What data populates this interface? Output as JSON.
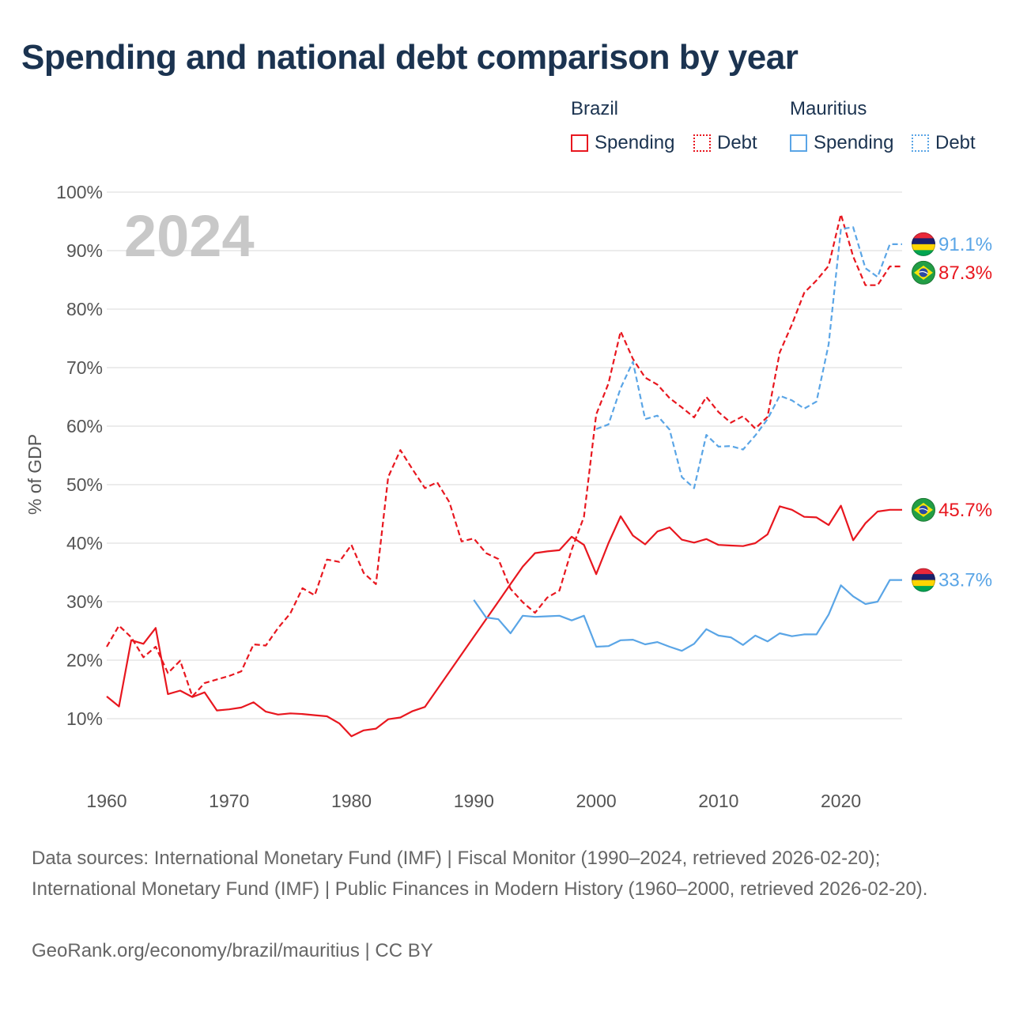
{
  "title": "Spending and national debt comparison by year",
  "year_badge": "2024",
  "legend": {
    "groups": [
      {
        "country": "Brazil",
        "color": "#e8171f",
        "items": [
          {
            "label": "Spending",
            "style": "solid"
          },
          {
            "label": "Debt",
            "style": "dotted"
          }
        ]
      },
      {
        "country": "Mauritius",
        "color": "#5aa5e6",
        "items": [
          {
            "label": "Spending",
            "style": "solid"
          },
          {
            "label": "Debt",
            "style": "dotted"
          }
        ]
      }
    ]
  },
  "footer": {
    "sources": "Data sources: International Monetary Fund (IMF) | Fiscal Monitor (1990–2024, retrieved 2026-02-20); International Monetary Fund (IMF) | Public Finances in Modern History (1960–2000, retrieved 2026-02-20).",
    "credit": "GeoRank.org/economy/brazil/mauritius | CC BY"
  },
  "chart_data": {
    "type": "line",
    "title": "Spending and national debt comparison by year",
    "xlabel": "",
    "ylabel": "% of GDP",
    "xlim": [
      1960,
      2025
    ],
    "ylim": [
      0,
      100
    ],
    "x_ticks": [
      1960,
      1970,
      1980,
      1990,
      2000,
      2010,
      2020
    ],
    "y_ticks": [
      10,
      20,
      30,
      40,
      50,
      60,
      70,
      80,
      90,
      100
    ],
    "y_tick_labels": [
      "10%",
      "20%",
      "30%",
      "40%",
      "50%",
      "60%",
      "70%",
      "80%",
      "90%",
      "100%"
    ],
    "grid": true,
    "series": [
      {
        "name": "Brazil Spending",
        "country": "Brazil",
        "flag": "brazil",
        "color": "#e8171f",
        "dash": "solid",
        "end_label": "45.7%",
        "points": [
          [
            1960,
            13.8
          ],
          [
            1961,
            12.1
          ],
          [
            1962,
            23.4
          ],
          [
            1963,
            22.8
          ],
          [
            1964,
            25.5
          ],
          [
            1965,
            14.2
          ],
          [
            1966,
            14.8
          ],
          [
            1967,
            13.7
          ],
          [
            1968,
            14.5
          ],
          [
            1969,
            11.4
          ],
          [
            1970,
            11.6
          ],
          [
            1971,
            11.9
          ],
          [
            1972,
            12.8
          ],
          [
            1973,
            11.2
          ],
          [
            1974,
            10.7
          ],
          [
            1975,
            10.9
          ],
          [
            1976,
            10.8
          ],
          [
            1977,
            10.6
          ],
          [
            1978,
            10.4
          ],
          [
            1979,
            9.2
          ],
          [
            1980,
            7.0
          ],
          [
            1981,
            8.0
          ],
          [
            1982,
            8.3
          ],
          [
            1983,
            9.9
          ],
          [
            1984,
            10.2
          ],
          [
            1985,
            11.3
          ],
          [
            1986,
            12.0
          ],
          [
            1987,
            15.0
          ],
          [
            1988,
            18.0
          ],
          [
            1989,
            21.0
          ],
          [
            1990,
            24.0
          ],
          [
            1991,
            27.0
          ],
          [
            1992,
            30.0
          ],
          [
            1993,
            33.0
          ],
          [
            1994,
            36.0
          ],
          [
            1995,
            38.3
          ],
          [
            1996,
            38.6
          ],
          [
            1997,
            38.8
          ],
          [
            1998,
            41.1
          ],
          [
            1999,
            39.7
          ],
          [
            2000,
            34.7
          ],
          [
            2001,
            40.0
          ],
          [
            2002,
            44.6
          ],
          [
            2003,
            41.3
          ],
          [
            2004,
            39.8
          ],
          [
            2005,
            42.0
          ],
          [
            2006,
            42.7
          ],
          [
            2007,
            40.6
          ],
          [
            2008,
            40.1
          ],
          [
            2009,
            40.7
          ],
          [
            2010,
            39.7
          ],
          [
            2011,
            39.6
          ],
          [
            2012,
            39.5
          ],
          [
            2013,
            40.0
          ],
          [
            2014,
            41.5
          ],
          [
            2015,
            46.3
          ],
          [
            2016,
            45.7
          ],
          [
            2017,
            44.5
          ],
          [
            2018,
            44.4
          ],
          [
            2019,
            43.1
          ],
          [
            2020,
            46.4
          ],
          [
            2021,
            40.5
          ],
          [
            2022,
            43.4
          ],
          [
            2023,
            45.4
          ],
          [
            2024,
            45.7
          ],
          [
            2025,
            45.7
          ]
        ]
      },
      {
        "name": "Brazil Debt",
        "country": "Brazil",
        "flag": "brazil",
        "color": "#e8171f",
        "dash": "dashed",
        "end_label": "87.3%",
        "points": [
          [
            1960,
            22.3
          ],
          [
            1961,
            25.9
          ],
          [
            1962,
            23.9
          ],
          [
            1963,
            20.5
          ],
          [
            1964,
            22.3
          ],
          [
            1965,
            17.8
          ],
          [
            1966,
            19.9
          ],
          [
            1967,
            13.8
          ],
          [
            1968,
            16.1
          ],
          [
            1969,
            16.7
          ],
          [
            1970,
            17.3
          ],
          [
            1971,
            18.1
          ],
          [
            1972,
            22.7
          ],
          [
            1973,
            22.5
          ],
          [
            1974,
            25.5
          ],
          [
            1975,
            28.0
          ],
          [
            1976,
            32.3
          ],
          [
            1977,
            31.1
          ],
          [
            1978,
            37.2
          ],
          [
            1979,
            36.8
          ],
          [
            1980,
            39.7
          ],
          [
            1981,
            34.9
          ],
          [
            1982,
            33.0
          ],
          [
            1983,
            51.3
          ],
          [
            1984,
            55.9
          ],
          [
            1985,
            52.6
          ],
          [
            1986,
            49.4
          ],
          [
            1987,
            50.4
          ],
          [
            1988,
            47.0
          ],
          [
            1989,
            40.3
          ],
          [
            1990,
            40.8
          ],
          [
            1991,
            38.3
          ],
          [
            1992,
            37.3
          ],
          [
            1993,
            32.2
          ],
          [
            1994,
            29.9
          ],
          [
            1995,
            28.1
          ],
          [
            1996,
            30.7
          ],
          [
            1997,
            31.9
          ],
          [
            1998,
            38.9
          ],
          [
            1999,
            44.5
          ],
          [
            2000,
            62.0
          ],
          [
            2001,
            67.3
          ],
          [
            2002,
            76.2
          ],
          [
            2003,
            71.5
          ],
          [
            2004,
            68.3
          ],
          [
            2005,
            67.1
          ],
          [
            2006,
            64.8
          ],
          [
            2007,
            63.2
          ],
          [
            2008,
            61.5
          ],
          [
            2009,
            65.0
          ],
          [
            2010,
            62.4
          ],
          [
            2011,
            60.6
          ],
          [
            2012,
            61.7
          ],
          [
            2013,
            59.6
          ],
          [
            2014,
            61.6
          ],
          [
            2015,
            72.6
          ],
          [
            2016,
            77.4
          ],
          [
            2017,
            82.8
          ],
          [
            2018,
            84.9
          ],
          [
            2019,
            87.4
          ],
          [
            2020,
            96.2
          ],
          [
            2021,
            89.0
          ],
          [
            2022,
            84.1
          ],
          [
            2023,
            84.1
          ],
          [
            2024,
            87.3
          ],
          [
            2025,
            87.3
          ]
        ]
      },
      {
        "name": "Mauritius Spending",
        "country": "Mauritius",
        "flag": "mauritius",
        "color": "#5aa5e6",
        "dash": "solid",
        "end_label": "33.7%",
        "points": [
          [
            1990,
            30.3
          ],
          [
            1991,
            27.3
          ],
          [
            1992,
            27.0
          ],
          [
            1993,
            24.6
          ],
          [
            1994,
            27.6
          ],
          [
            1995,
            27.4
          ],
          [
            1996,
            27.5
          ],
          [
            1997,
            27.6
          ],
          [
            1998,
            26.8
          ],
          [
            1999,
            27.6
          ],
          [
            2000,
            22.3
          ],
          [
            2001,
            22.4
          ],
          [
            2002,
            23.4
          ],
          [
            2003,
            23.5
          ],
          [
            2004,
            22.7
          ],
          [
            2005,
            23.1
          ],
          [
            2006,
            22.3
          ],
          [
            2007,
            21.6
          ],
          [
            2008,
            22.8
          ],
          [
            2009,
            25.3
          ],
          [
            2010,
            24.2
          ],
          [
            2011,
            23.9
          ],
          [
            2012,
            22.6
          ],
          [
            2013,
            24.2
          ],
          [
            2014,
            23.2
          ],
          [
            2015,
            24.6
          ],
          [
            2016,
            24.1
          ],
          [
            2017,
            24.4
          ],
          [
            2018,
            24.4
          ],
          [
            2019,
            27.8
          ],
          [
            2020,
            32.8
          ],
          [
            2021,
            30.9
          ],
          [
            2022,
            29.6
          ],
          [
            2023,
            30.0
          ],
          [
            2024,
            33.7
          ],
          [
            2025,
            33.7
          ]
        ]
      },
      {
        "name": "Mauritius Debt",
        "country": "Mauritius",
        "flag": "mauritius",
        "color": "#5aa5e6",
        "dash": "dashed",
        "end_label": "91.1%",
        "points": [
          [
            2000,
            59.5
          ],
          [
            2001,
            60.3
          ],
          [
            2002,
            66.5
          ],
          [
            2003,
            71.0
          ],
          [
            2004,
            61.2
          ],
          [
            2005,
            61.8
          ],
          [
            2006,
            59.4
          ],
          [
            2007,
            51.3
          ],
          [
            2008,
            49.4
          ],
          [
            2009,
            58.5
          ],
          [
            2010,
            56.5
          ],
          [
            2011,
            56.6
          ],
          [
            2012,
            56.0
          ],
          [
            2013,
            58.4
          ],
          [
            2014,
            61.2
          ],
          [
            2015,
            65.2
          ],
          [
            2016,
            64.4
          ],
          [
            2017,
            63.0
          ],
          [
            2018,
            64.2
          ],
          [
            2019,
            74.0
          ],
          [
            2020,
            93.7
          ],
          [
            2021,
            94.0
          ],
          [
            2022,
            87.0
          ],
          [
            2023,
            85.5
          ],
          [
            2024,
            91.1
          ],
          [
            2025,
            91.1
          ]
        ]
      }
    ]
  }
}
